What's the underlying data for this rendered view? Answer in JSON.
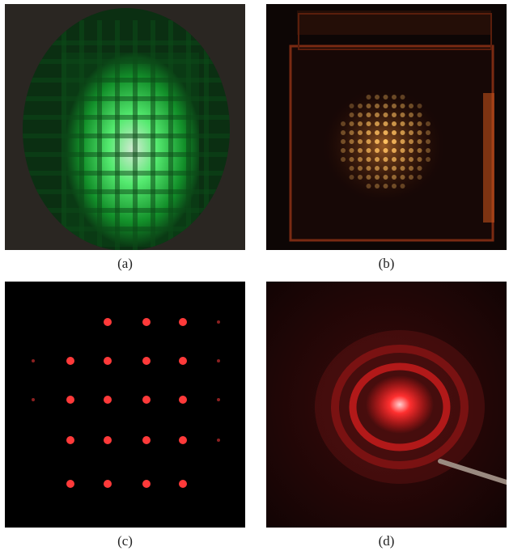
{
  "figure": {
    "panels": [
      {
        "id": "a",
        "caption": "(a)",
        "content": "green-grid-pattern"
      },
      {
        "id": "b",
        "caption": "(b)",
        "content": "orange-spot-array-in-glass-cube"
      },
      {
        "id": "c",
        "caption": "(c)",
        "content": "red-spot-array-on-black"
      },
      {
        "id": "d",
        "caption": "(d)",
        "content": "red-circular-diffraction-rings"
      }
    ]
  },
  "colors": {
    "background": "#ffffff",
    "caption_text": "#222222",
    "green_light": "#3bff6a",
    "orange_light": "#ffb347",
    "red_light": "#ff2a2a",
    "dark_background": "#000000"
  }
}
